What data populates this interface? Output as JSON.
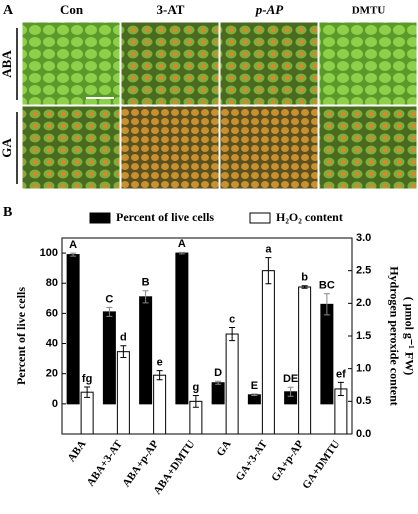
{
  "panel_a": {
    "label": "A",
    "columns": [
      "Con",
      "3-AT",
      "p-AP",
      "DMTU"
    ],
    "rows": [
      "ABA",
      "GA"
    ]
  },
  "chart_data": {
    "type": "bar",
    "label": "B",
    "categories": [
      "ABA",
      "ABA+3-AT",
      "ABA+p-AP",
      "ABA+DMTU",
      "GA",
      "GA+3-AT",
      "GA+p-AP",
      "GA+DMTU"
    ],
    "ylabel": "Percent of live cells",
    "y2label": [
      "Hydrogen peroxide content",
      "( μmol g⁻¹ FW)"
    ],
    "ylim": [
      -20,
      110
    ],
    "yticks": [
      0,
      20,
      40,
      60,
      80,
      100
    ],
    "y2lim": [
      0,
      3
    ],
    "y2ticks": [
      {
        "value": 0,
        "label": "0.0"
      },
      0.5,
      {
        "value": 1,
        "label": "1.0"
      },
      1.5,
      {
        "value": 2,
        "label": "2.0"
      },
      2.5,
      {
        "value": 3,
        "label": "3.0"
      }
    ],
    "legend": "top",
    "series": [
      {
        "name": "Percent of live cells",
        "color": "#000000",
        "values": [
          99,
          61,
          71,
          100,
          14,
          6,
          8,
          66
        ],
        "errors": [
          1,
          3,
          4,
          0.5,
          1,
          0.5,
          3,
          7
        ],
        "letters": [
          "A",
          "C",
          "B",
          "A",
          "D",
          "E",
          "DE",
          "BC"
        ]
      },
      {
        "name": "H₂O₂ content",
        "color": "#ffffff",
        "axis": "y2",
        "values": [
          0.64,
          1.26,
          0.9,
          0.5,
          1.53,
          2.5,
          2.25,
          0.69
        ],
        "errors": [
          0.08,
          0.09,
          0.07,
          0.09,
          0.1,
          0.2,
          0.02,
          0.1
        ],
        "letters": [
          "fg",
          "d",
          "e",
          "g",
          "c",
          "a",
          "b",
          "ef"
        ]
      }
    ]
  }
}
